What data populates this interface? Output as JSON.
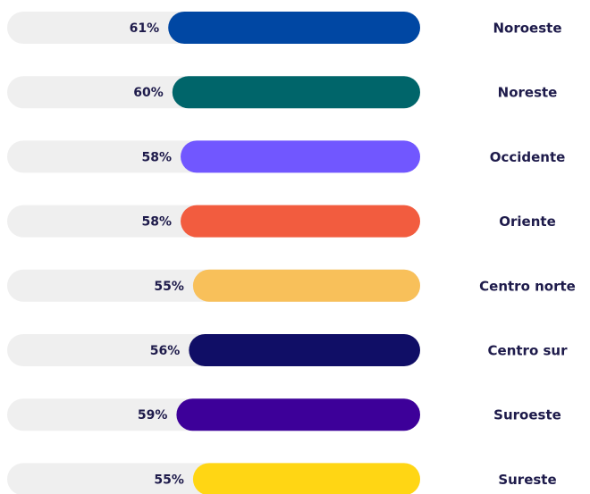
{
  "chart_data": {
    "type": "bar",
    "orientation": "horizontal-reversed",
    "categories": [
      "Noroeste",
      "Noreste",
      "Occidente",
      "Oriente",
      "Centro norte",
      "Centro sur",
      "Suroeste",
      "Sureste"
    ],
    "values": [
      61,
      60,
      58,
      58,
      55,
      56,
      59,
      55
    ],
    "value_labels": [
      "61%",
      "60%",
      "58%",
      "58%",
      "55%",
      "56%",
      "59%",
      "55%"
    ],
    "colors": [
      "#0047a3",
      "#00656a",
      "#7157ff",
      "#f25c3f",
      "#f8c05a",
      "#100e66",
      "#3d0099",
      "#ffd614"
    ],
    "xlim": [
      0,
      100
    ]
  }
}
